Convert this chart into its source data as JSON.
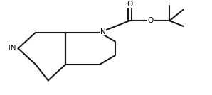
{
  "bg_color": "#ffffff",
  "bond_color": "#1a1a1a",
  "bond_width": 1.5,
  "figsize": [
    2.98,
    1.34
  ],
  "dpi": 100,
  "NH_label": "HN",
  "N_label": "N",
  "O_carbonyl": "O",
  "O_ester": "O"
}
